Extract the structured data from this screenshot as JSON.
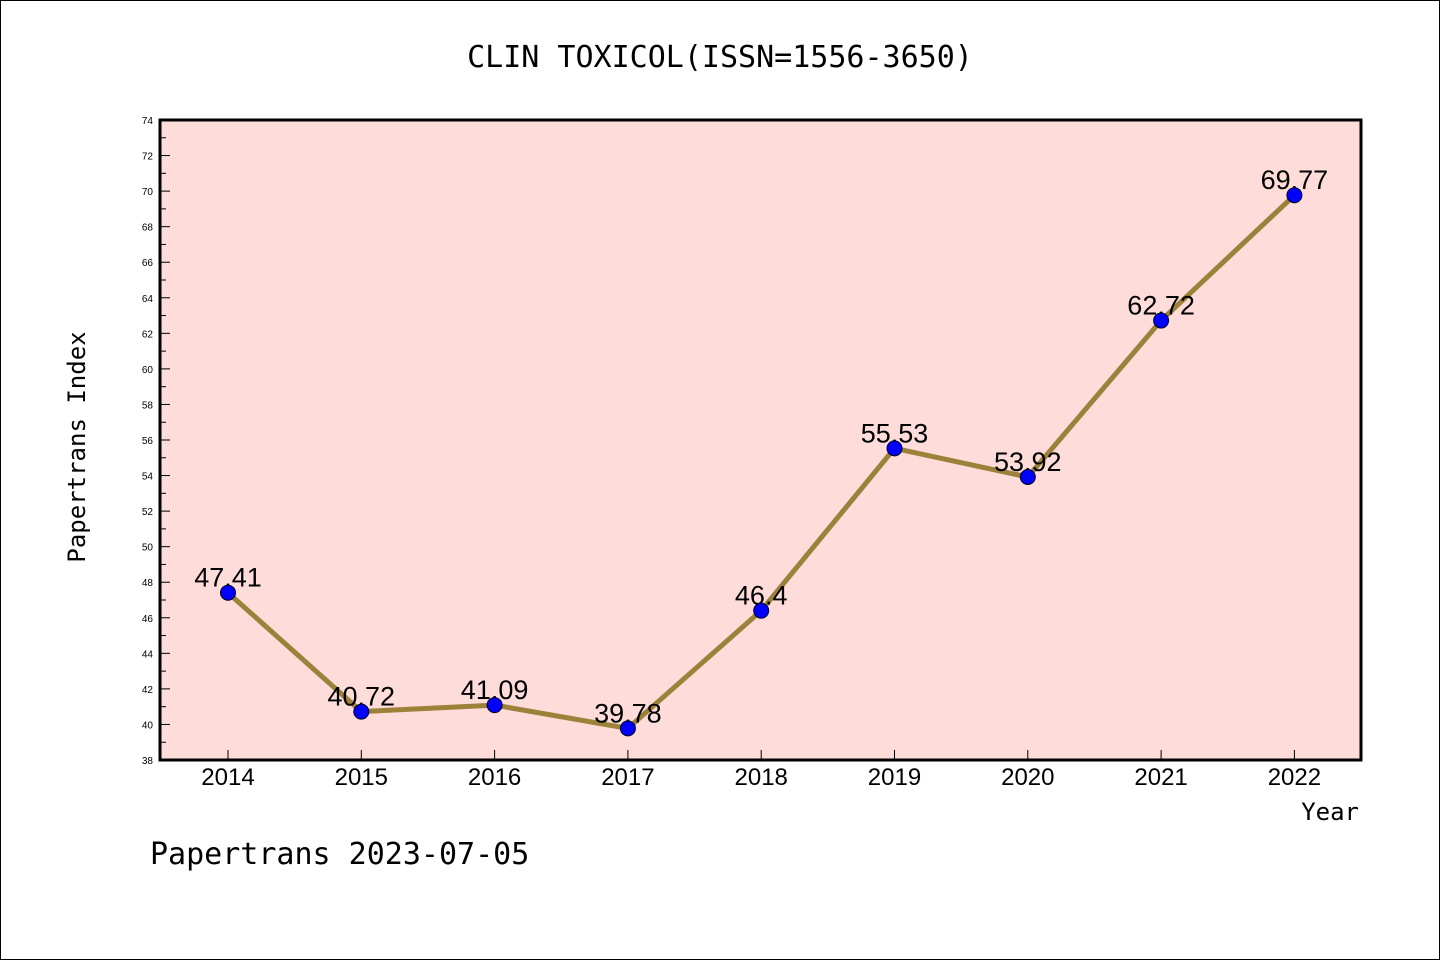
{
  "chart_data": {
    "type": "line",
    "title": "CLIN TOXICOL(ISSN=1556-3650)",
    "xlabel": "Year",
    "ylabel": "Papertrans Index",
    "footer": "Papertrans 2023-07-05",
    "categories": [
      "2014",
      "2015",
      "2016",
      "2017",
      "2018",
      "2019",
      "2020",
      "2021",
      "2022"
    ],
    "values": [
      47.41,
      40.72,
      41.09,
      39.78,
      46.4,
      55.53,
      53.92,
      62.72,
      69.77
    ],
    "data_labels": [
      "47.41",
      "40.72",
      "41.09",
      "39.78",
      "46.4",
      "55.53",
      "53.92",
      "62.72",
      "69.77"
    ],
    "ylim": [
      38,
      74
    ],
    "yticks": [
      38,
      40,
      42,
      44,
      46,
      48,
      50,
      52,
      54,
      56,
      58,
      60,
      62,
      64,
      66,
      68,
      70,
      72,
      74
    ],
    "grid": false,
    "colors": {
      "plot_background": "#fddcda",
      "line": "#9b8139",
      "marker": "#0000ff",
      "axis": "#000000"
    }
  }
}
